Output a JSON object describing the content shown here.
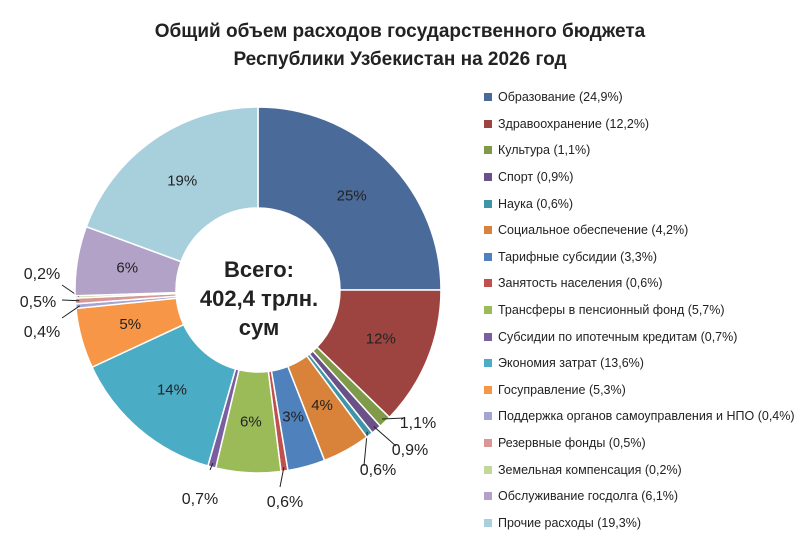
{
  "title_line1": "Общий объем расходов государственного бюджета",
  "title_line2": "Республики Узбекистан на 2026 год",
  "center": {
    "line1": "Всего:",
    "line2": "402,4 трлн.",
    "line3": "сум"
  },
  "chart_data": {
    "type": "pie",
    "title": "Общий объем расходов государственного бюджета Республики Узбекистан на 2026 год",
    "legend_position": "right",
    "categories": [
      "Образование (24,9%)",
      "Здравоохранение (12,2%)",
      "Культура (1,1%)",
      "Спорт (0,9%)",
      "Наука (0,6%)",
      "Социальное обеспечение (4,2%)",
      "Тарифные субсидии (3,3%)",
      "Занятость населения (0,6%)",
      "Трансферы в пенсионный фонд (5,7%)",
      "Субсидии по ипотечным кредитам (0,7%)",
      "Экономия затрат (13,6%)",
      "Госуправление (5,3%)",
      "Поддержка органов самоуправления и НПО (0,4%)",
      "Резервные фонды (0,5%)",
      "Земельная компенсация (0,2%)",
      "Обслуживание госдолга (6,1%)",
      "Прочие расходы (19,3%)"
    ],
    "values": [
      24.9,
      12.2,
      1.1,
      0.9,
      0.6,
      4.2,
      3.3,
      0.6,
      5.7,
      0.7,
      13.6,
      5.3,
      0.4,
      0.5,
      0.2,
      6.1,
      19.3
    ],
    "data_labels": [
      "25%",
      "12%",
      "1,1%",
      "0,9%",
      "0,6%",
      "4%",
      "3%",
      "0,6%",
      "6%",
      "0,7%",
      "14%",
      "5%",
      "0,4%",
      "0,5%",
      "0,2%",
      "6%",
      "19%"
    ],
    "colors": [
      "#4a6b9a",
      "#9e4440",
      "#7f9a48",
      "#6a5288",
      "#3f95a8",
      "#d9833a",
      "#4f81bd",
      "#c0504d",
      "#9bbb59",
      "#7a5fa0",
      "#4bacc6",
      "#f79646",
      "#a5a5d5",
      "#d99694",
      "#c4d79b",
      "#b3a2c7",
      "#a8d0dc"
    ]
  }
}
